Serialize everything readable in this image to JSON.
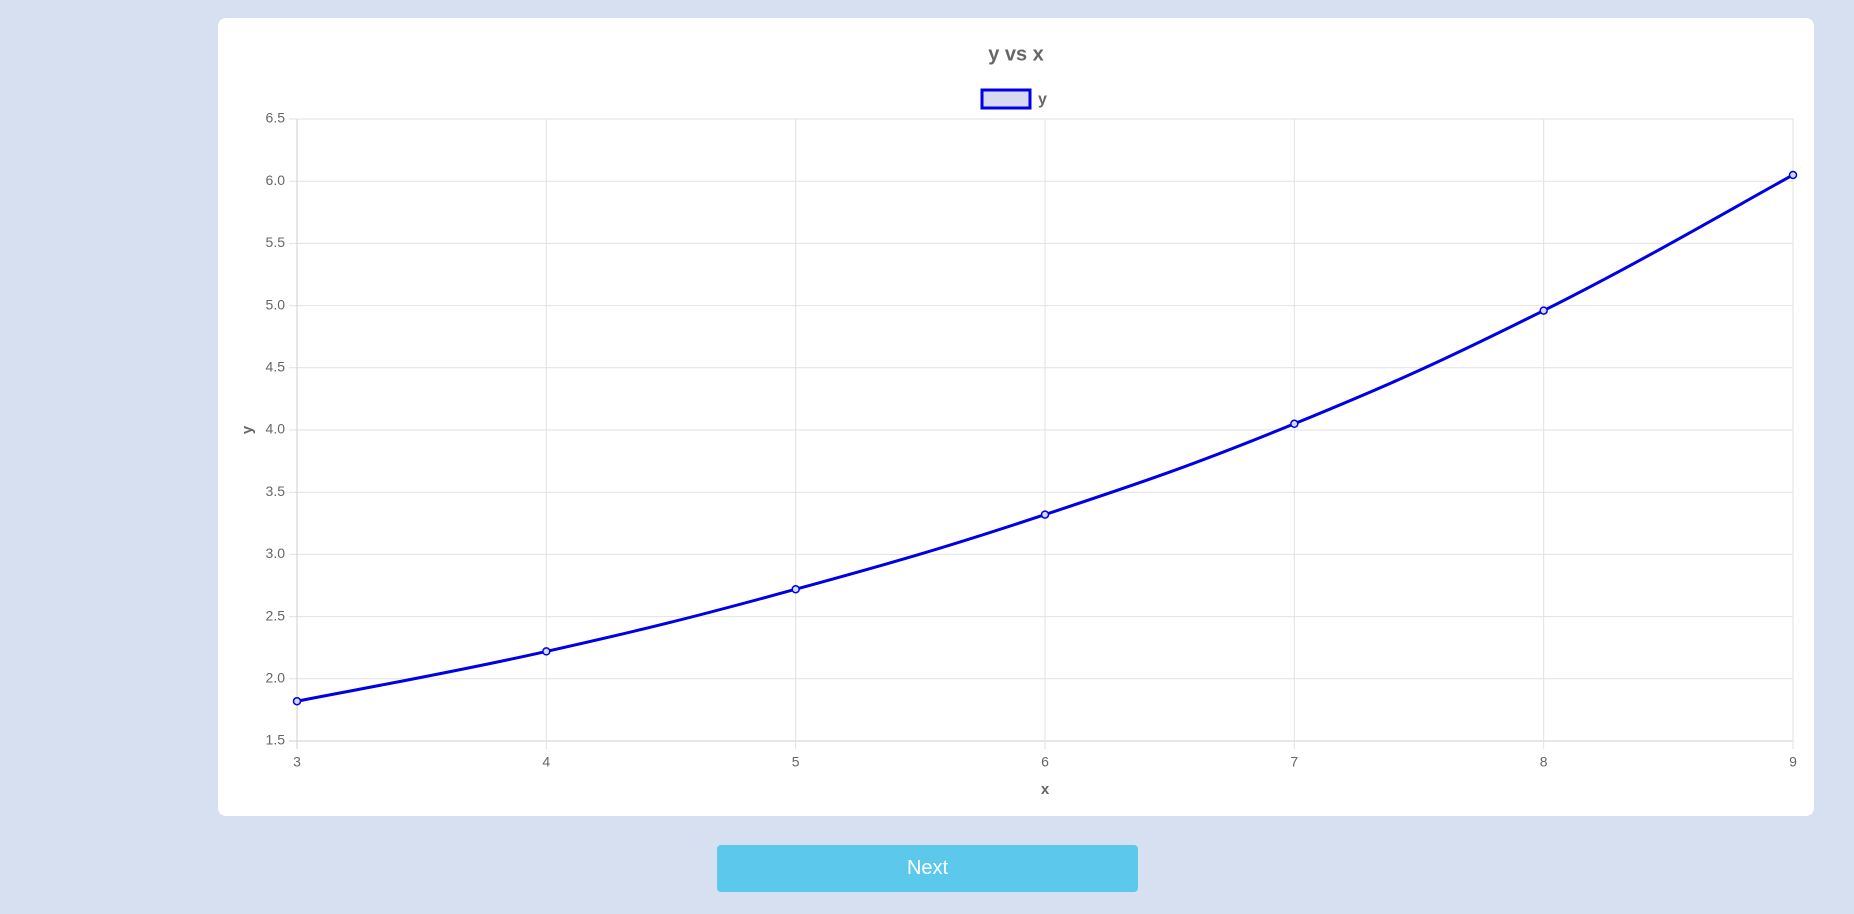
{
  "colors": {
    "series": "#0000e6",
    "legend_fill": "#d6d9f0",
    "grid": "#e2e2e2",
    "axis_line": "#cfcfcf",
    "button": "#5bc8ec",
    "background": "#d6e0f0"
  },
  "chart_data": {
    "type": "line",
    "title": "y vs x",
    "xlabel": "x",
    "ylabel": "y",
    "xlim": [
      3,
      9
    ],
    "ylim": [
      1.5,
      6.5
    ],
    "x_ticks": [
      "3",
      "4",
      "5",
      "6",
      "7",
      "8",
      "9"
    ],
    "y_ticks": [
      "1.5",
      "2.0",
      "2.5",
      "3.0",
      "3.5",
      "4.0",
      "4.5",
      "5.0",
      "5.5",
      "6.0",
      "6.5"
    ],
    "grid": true,
    "legend_position": "top-center",
    "x": [
      3,
      4,
      5,
      6,
      7,
      8,
      9
    ],
    "series": [
      {
        "name": "y",
        "values": [
          1.82,
          2.22,
          2.72,
          3.32,
          4.05,
          4.96,
          6.05
        ]
      }
    ]
  },
  "footer": {
    "next_label": "Next"
  }
}
